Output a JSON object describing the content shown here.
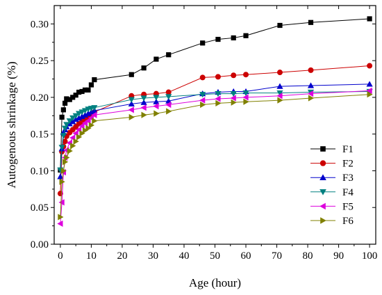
{
  "chart_data": {
    "type": "line",
    "xlabel": "Age (hour)",
    "ylabel": "Autogenous shrinkage (%)",
    "xlim": [
      -2,
      102
    ],
    "ylim": [
      0,
      0.325
    ],
    "xticks": [
      0,
      10,
      20,
      30,
      40,
      50,
      60,
      70,
      80,
      90,
      100
    ],
    "yticks": [
      0.0,
      0.05,
      0.1,
      0.15,
      0.2,
      0.25,
      0.3
    ],
    "xtick_labels": [
      "0",
      "10",
      "20",
      "30",
      "40",
      "50",
      "60",
      "70",
      "80",
      "90",
      "100"
    ],
    "ytick_labels": [
      "0.00",
      "0.05",
      "0.10",
      "0.15",
      "0.20",
      "0.25",
      "0.30"
    ],
    "grid": false,
    "legend_position": "right",
    "series": [
      {
        "name": "F1",
        "color": "#000000",
        "marker": "square",
        "x": [
          0,
          0.5,
          1,
          1.5,
          2,
          3,
          4,
          5,
          6,
          7,
          8,
          9,
          10,
          11,
          23,
          27,
          31,
          35,
          46,
          51,
          56,
          60,
          71,
          81,
          100
        ],
        "y": [
          0.101,
          0.173,
          0.183,
          0.192,
          0.198,
          0.197,
          0.2,
          0.203,
          0.207,
          0.208,
          0.21,
          0.21,
          0.217,
          0.224,
          0.231,
          0.24,
          0.252,
          0.258,
          0.274,
          0.279,
          0.281,
          0.284,
          0.298,
          0.302,
          0.307
        ]
      },
      {
        "name": "F2",
        "color": "#cc0000",
        "marker": "circle",
        "x": [
          0,
          0.5,
          1,
          1.5,
          2,
          3,
          4,
          5,
          6,
          7,
          8,
          9,
          10,
          11,
          23,
          27,
          31,
          35,
          46,
          51,
          56,
          60,
          71,
          81,
          100
        ],
        "y": [
          0.069,
          0.126,
          0.133,
          0.14,
          0.147,
          0.152,
          0.156,
          0.16,
          0.164,
          0.167,
          0.17,
          0.172,
          0.175,
          0.18,
          0.202,
          0.204,
          0.205,
          0.207,
          0.227,
          0.228,
          0.23,
          0.231,
          0.234,
          0.237,
          0.243
        ]
      },
      {
        "name": "F3",
        "color": "#0000cc",
        "marker": "triangle-up",
        "x": [
          0,
          0.5,
          1,
          1.5,
          2,
          3,
          4,
          5,
          6,
          7,
          8,
          9,
          10,
          11,
          23,
          27,
          31,
          35,
          46,
          51,
          56,
          60,
          71,
          81,
          100
        ],
        "y": [
          0.092,
          0.13,
          0.152,
          0.156,
          0.16,
          0.164,
          0.167,
          0.17,
          0.172,
          0.174,
          0.176,
          0.178,
          0.18,
          0.182,
          0.191,
          0.193,
          0.194,
          0.195,
          0.205,
          0.207,
          0.208,
          0.208,
          0.215,
          0.216,
          0.218
        ]
      },
      {
        "name": "F4",
        "color": "#008080",
        "marker": "triangle-down",
        "x": [
          0,
          0.5,
          1,
          1.5,
          2,
          3,
          4,
          5,
          6,
          7,
          8,
          9,
          10,
          11,
          23,
          27,
          31,
          35,
          46,
          51,
          56,
          60,
          71,
          81,
          100
        ],
        "y": [
          0.101,
          0.132,
          0.148,
          0.158,
          0.163,
          0.168,
          0.172,
          0.175,
          0.178,
          0.18,
          0.182,
          0.184,
          0.185,
          0.186,
          0.197,
          0.199,
          0.2,
          0.201,
          0.204,
          0.205,
          0.205,
          0.206,
          0.206,
          0.207,
          0.208
        ]
      },
      {
        "name": "F5",
        "color": "#dd00dd",
        "marker": "triangle-left",
        "x": [
          0,
          0.5,
          1,
          1.5,
          2,
          3,
          4,
          5,
          6,
          7,
          8,
          9,
          10,
          11,
          23,
          27,
          31,
          35,
          46,
          51,
          56,
          60,
          71,
          81,
          100
        ],
        "y": [
          0.028,
          0.057,
          0.098,
          0.118,
          0.128,
          0.138,
          0.145,
          0.151,
          0.156,
          0.161,
          0.165,
          0.168,
          0.172,
          0.176,
          0.183,
          0.186,
          0.188,
          0.19,
          0.196,
          0.198,
          0.199,
          0.2,
          0.202,
          0.205,
          0.209
        ]
      },
      {
        "name": "F6",
        "color": "#808000",
        "marker": "triangle-right",
        "x": [
          0,
          0.5,
          1,
          1.5,
          2,
          3,
          4,
          5,
          6,
          7,
          8,
          9,
          10,
          11,
          23,
          27,
          31,
          35,
          46,
          51,
          56,
          60,
          71,
          81,
          100
        ],
        "y": [
          0.037,
          0.085,
          0.1,
          0.112,
          0.118,
          0.127,
          0.134,
          0.14,
          0.146,
          0.151,
          0.155,
          0.158,
          0.162,
          0.168,
          0.173,
          0.176,
          0.178,
          0.181,
          0.19,
          0.192,
          0.193,
          0.194,
          0.196,
          0.199,
          0.204
        ]
      }
    ]
  }
}
